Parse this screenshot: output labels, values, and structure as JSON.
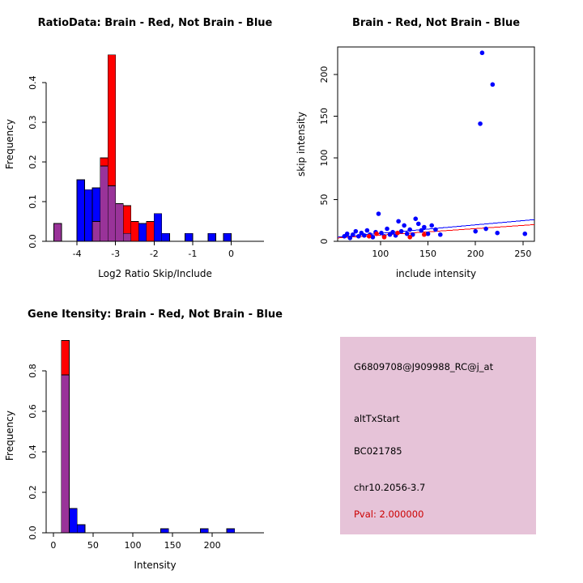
{
  "window": {
    "background": "#FFFFFF"
  },
  "colors": {
    "red": "#FF0000",
    "blue": "#0000FF",
    "overlap": "#993399",
    "axis": "#000000"
  },
  "chart_data": [
    {
      "id": "ratio-hist",
      "type": "bar",
      "title": "RatioData: Brain - Red, Not Brain - Blue",
      "xlabel": "Log2 Ratio Skip/Include",
      "ylabel": "Frequency",
      "xlim": [
        -4.8,
        0.85
      ],
      "ylim": [
        0,
        0.49
      ],
      "xticks": [
        -4,
        -3,
        -2,
        -1,
        0
      ],
      "xtick_labels": [
        "-4",
        "-3",
        "-2",
        "-1",
        "0"
      ],
      "yticks": [
        0,
        0.1,
        0.2,
        0.3,
        0.4
      ],
      "ytick_labels": [
        "0.0",
        "0.1",
        "0.2",
        "0.3",
        "0.4"
      ],
      "grid": false,
      "legend": "in title: Brain = red, Not Brain = blue, overlap = purple",
      "series": [
        {
          "name": "Brain",
          "color": "red"
        },
        {
          "name": "Not Brain",
          "color": "blue"
        }
      ],
      "bin_width": 0.2,
      "bars_format": [
        "bin_start",
        "brain_red_frequency",
        "notbrain_blue_frequency"
      ],
      "bars": [
        [
          -4.6,
          0.045,
          0.045
        ],
        [
          -4.0,
          0,
          0.155
        ],
        [
          -3.8,
          0,
          0.13
        ],
        [
          -3.6,
          0.05,
          0.135
        ],
        [
          -3.4,
          0.21,
          0.19
        ],
        [
          -3.2,
          0.47,
          0.14
        ],
        [
          -3.0,
          0.095,
          0.095
        ],
        [
          -2.8,
          0.09,
          0.02
        ],
        [
          -2.6,
          0.05,
          0
        ],
        [
          -2.4,
          0,
          0.045
        ],
        [
          -2.2,
          0.05,
          0
        ],
        [
          -2.0,
          0,
          0.07
        ],
        [
          -1.8,
          0,
          0.02
        ],
        [
          -1.2,
          0,
          0.02
        ],
        [
          -0.6,
          0,
          0.02
        ],
        [
          -0.2,
          0,
          0.02
        ]
      ]
    },
    {
      "id": "scatter",
      "type": "scatter",
      "title": "Brain - Red, Not Brain - Blue",
      "xlabel": "include intensity",
      "ylabel": "skip intensity",
      "xlim": [
        55,
        262
      ],
      "ylim": [
        0,
        233
      ],
      "xticks": [
        100,
        150,
        200,
        250
      ],
      "xtick_labels": [
        "100",
        "150",
        "200",
        "250"
      ],
      "yticks": [
        0,
        50,
        100,
        150,
        200
      ],
      "ytick_labels": [
        "0",
        "50",
        "100",
        "150",
        "200"
      ],
      "grid": false,
      "margins": {
        "r": 60
      },
      "series": [
        {
          "name": "Not Brain",
          "color": "blue",
          "points": [
            [
              62,
              6
            ],
            [
              65,
              9
            ],
            [
              68,
              4
            ],
            [
              71,
              8
            ],
            [
              74,
              12
            ],
            [
              77,
              6
            ],
            [
              80,
              10
            ],
            [
              83,
              7
            ],
            [
              86,
              13
            ],
            [
              89,
              8
            ],
            [
              92,
              5
            ],
            [
              95,
              11
            ],
            [
              98,
              33
            ],
            [
              101,
              10
            ],
            [
              104,
              6
            ],
            [
              107,
              15
            ],
            [
              110,
              8
            ],
            [
              113,
              11
            ],
            [
              116,
              7
            ],
            [
              119,
              24
            ],
            [
              122,
              12
            ],
            [
              125,
              19
            ],
            [
              128,
              9
            ],
            [
              131,
              14
            ],
            [
              134,
              8
            ],
            [
              137,
              27
            ],
            [
              140,
              21
            ],
            [
              143,
              13
            ],
            [
              146,
              17
            ],
            [
              150,
              9
            ],
            [
              154,
              19
            ],
            [
              158,
              14
            ],
            [
              163,
              8
            ],
            [
              200,
              12
            ],
            [
              205,
              141
            ],
            [
              207,
              226
            ],
            [
              211,
              15
            ],
            [
              218,
              188
            ],
            [
              223,
              10
            ],
            [
              252,
              9
            ]
          ]
        },
        {
          "name": "Brain",
          "color": "red",
          "points": [
            [
              88,
              6
            ],
            [
              96,
              9
            ],
            [
              104,
              5
            ],
            [
              118,
              10
            ],
            [
              131,
              5
            ],
            [
              146,
              8
            ]
          ]
        }
      ],
      "fit_lines": [
        {
          "color": "red",
          "x": [
            55,
            262
          ],
          "y": [
            4,
            20
          ]
        },
        {
          "color": "blue",
          "x": [
            55,
            262
          ],
          "y": [
            5,
            26
          ]
        }
      ]
    },
    {
      "id": "gene-hist",
      "type": "bar",
      "title": "Gene Itensity: Brain - Red, Not Brain - Blue",
      "xlabel": "Intensity",
      "ylabel": "Frequency",
      "xlim": [
        -9,
        265
      ],
      "ylim": [
        0,
        0.96
      ],
      "xticks": [
        0,
        50,
        100,
        150,
        200
      ],
      "xtick_labels": [
        "0",
        "50",
        "100",
        "150",
        "200"
      ],
      "yticks": [
        0,
        0.2,
        0.4,
        0.6,
        0.8
      ],
      "ytick_labels": [
        "0.0",
        "0.2",
        "0.4",
        "0.6",
        "0.8"
      ],
      "grid": false,
      "legend": "in title: Brain = red, Not Brain = blue, overlap = purple",
      "series": [
        {
          "name": "Brain",
          "color": "red"
        },
        {
          "name": "Not Brain",
          "color": "blue"
        }
      ],
      "bin_width": 10,
      "bars_format": [
        "bin_start",
        "brain_red_frequency",
        "notbrain_blue_frequency"
      ],
      "bars": [
        [
          10,
          0.95,
          0.78
        ],
        [
          20,
          0,
          0.12
        ],
        [
          30,
          0,
          0.04
        ],
        [
          135,
          0,
          0.02
        ],
        [
          185,
          0,
          0.02
        ],
        [
          218,
          0,
          0.02
        ]
      ]
    }
  ],
  "info_box": {
    "bg": "#E6C3D8",
    "lines": [
      {
        "text": "G6809708@J909988_RC@j_at",
        "color": "#000000"
      },
      {
        "text": "altTxStart",
        "color": "#000000"
      },
      {
        "text": "BC021785",
        "color": "#000000"
      },
      {
        "text": "chr10.2056-3.7",
        "color": "#000000"
      },
      {
        "text": "Pval: 2.000000",
        "color": "#CC0000"
      }
    ]
  }
}
